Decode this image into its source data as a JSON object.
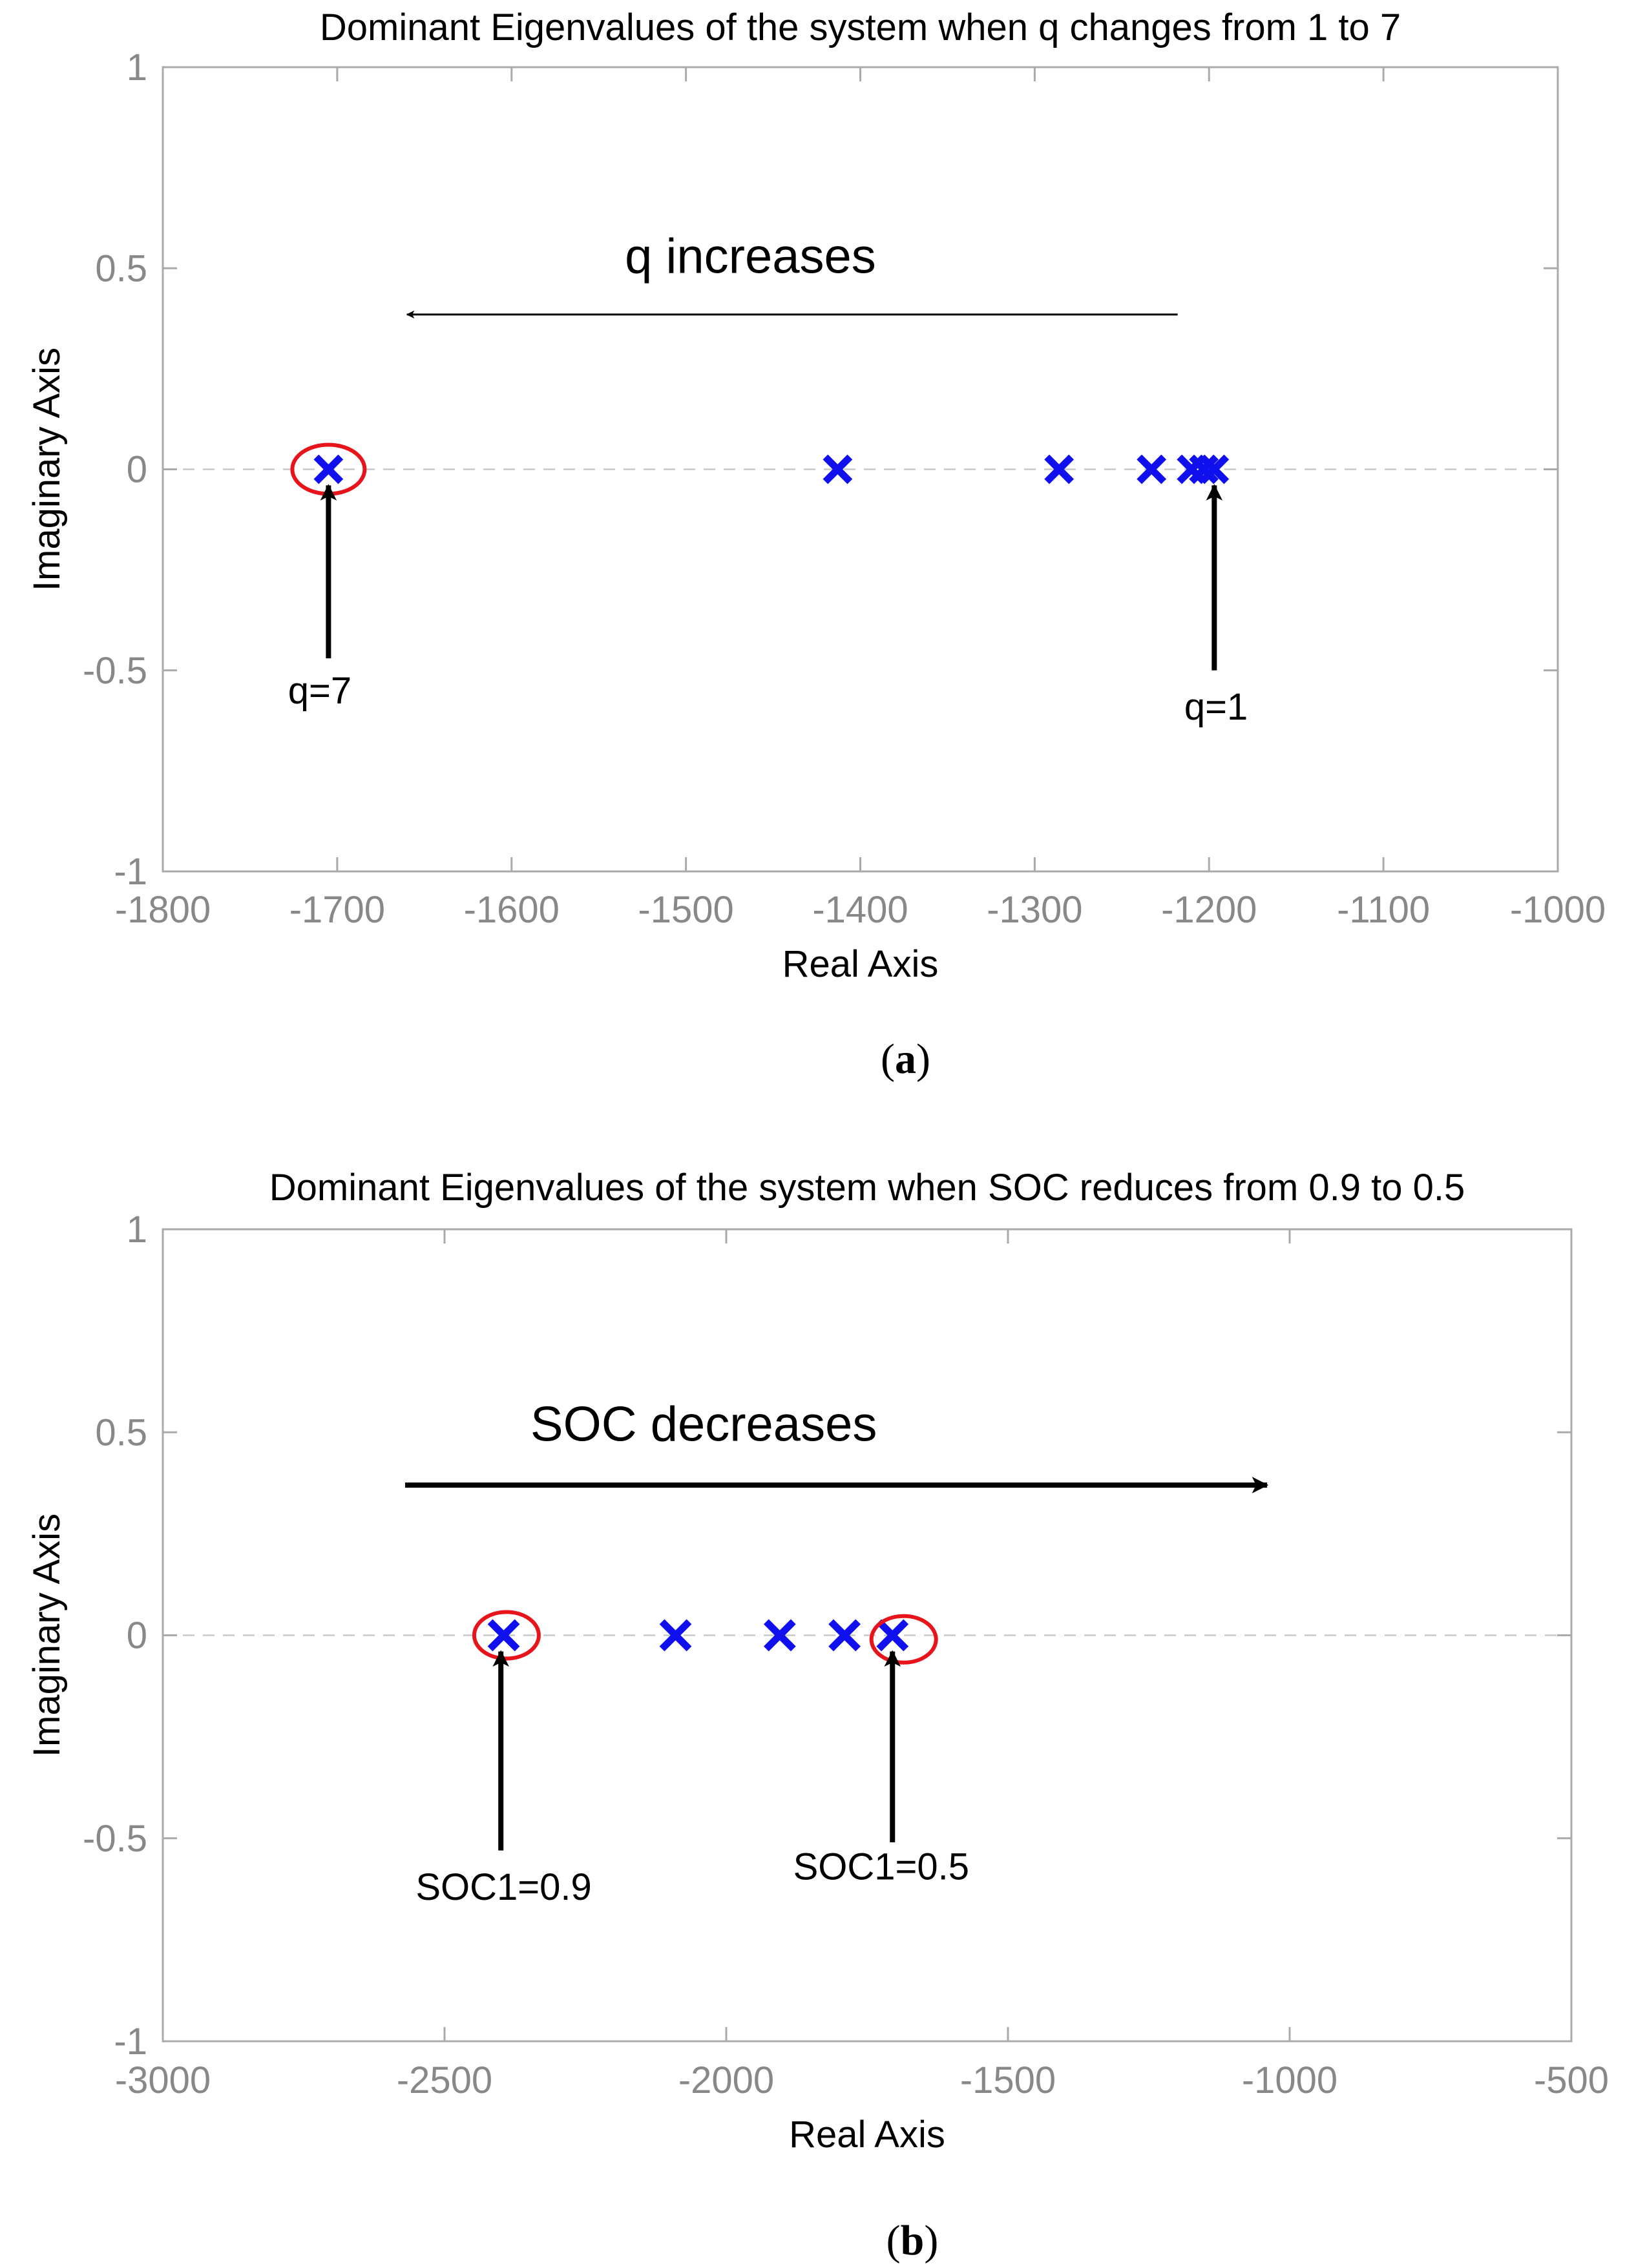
{
  "chart_data": [
    {
      "type": "scatter",
      "panel_label": "a",
      "title": "Dominant Eigenvalues of the system when q changes from 1 to 7",
      "xlabel": "Real Axis",
      "ylabel": "Imaginary Axis",
      "xlim": [
        -1800,
        -1000
      ],
      "ylim": [
        -1,
        1
      ],
      "xticks": [
        "-1800",
        "-1700",
        "-1600",
        "-1500",
        "-1400",
        "-1300",
        "-1200",
        "-1100",
        "-1000"
      ],
      "yticks": [
        "-1",
        "-0.5",
        "0",
        "0.5",
        "1"
      ],
      "grid": false,
      "zero_line": "dashed",
      "marker": "x",
      "marker_color": "#1010ee",
      "points": [
        {
          "x": -1705,
          "y": 0
        },
        {
          "x": -1413,
          "y": 0
        },
        {
          "x": -1286,
          "y": 0
        },
        {
          "x": -1233,
          "y": 0
        },
        {
          "x": -1210,
          "y": 0
        },
        {
          "x": -1203,
          "y": 0
        },
        {
          "x": -1197,
          "y": 0
        }
      ],
      "highlights": [
        {
          "x": -1705,
          "y": 0,
          "color": "#e8141c"
        }
      ],
      "annotations": [
        {
          "text": "q increases",
          "style": "large",
          "text_at": [
            -1463,
            0.53
          ],
          "arrow_from": [
            -1218,
            0.385
          ],
          "arrow_to": [
            -1660,
            0.385
          ],
          "arrow_weight": "thin"
        },
        {
          "text": "q=7",
          "style": "normal",
          "text_at": [
            -1710,
            -0.55
          ],
          "arrow_from": [
            -1705,
            -0.47
          ],
          "arrow_to": [
            -1705,
            -0.04
          ],
          "arrow_weight": "bold"
        },
        {
          "text": "q=1",
          "style": "normal",
          "text_at": [
            -1196,
            -0.59
          ],
          "arrow_from": [
            -1197,
            -0.5
          ],
          "arrow_to": [
            -1197,
            -0.04
          ],
          "arrow_weight": "bold"
        }
      ]
    },
    {
      "type": "scatter",
      "panel_label": "b",
      "title": "Dominant Eigenvalues of the system when SOC reduces from 0.9 to 0.5",
      "xlabel": "Real Axis",
      "ylabel": "Imaginary Axis",
      "xlim": [
        -3000,
        -500
      ],
      "ylim": [
        -1,
        1
      ],
      "xticks": [
        "-3000",
        "-2500",
        "-2000",
        "-1500",
        "-1000",
        "-500"
      ],
      "yticks": [
        "-1",
        "-0.5",
        "0",
        "0.5",
        "1"
      ],
      "grid": false,
      "zero_line": "dashed",
      "marker": "x",
      "marker_color": "#1010ee",
      "points": [
        {
          "x": -2395,
          "y": 0
        },
        {
          "x": -2090,
          "y": 0
        },
        {
          "x": -1905,
          "y": 0
        },
        {
          "x": -1790,
          "y": 0
        },
        {
          "x": -1705,
          "y": 0
        }
      ],
      "highlights": [
        {
          "x": -2390,
          "y": 0,
          "color": "#e8141c"
        },
        {
          "x": -1685,
          "y": -0.01,
          "color": "#e8141c"
        }
      ],
      "annotations": [
        {
          "text": "SOC decreases",
          "style": "large",
          "text_at": [
            -2040,
            0.52
          ],
          "arrow_from": [
            -2570,
            0.37
          ],
          "arrow_to": [
            -1040,
            0.37
          ],
          "arrow_weight": "bold"
        },
        {
          "text": "SOC1=0.9",
          "style": "normal",
          "text_at": [
            -2395,
            -0.62
          ],
          "arrow_from": [
            -2400,
            -0.53
          ],
          "arrow_to": [
            -2400,
            -0.04
          ],
          "arrow_weight": "bold"
        },
        {
          "text": "SOC1=0.5",
          "style": "normal",
          "text_at": [
            -1725,
            -0.57
          ],
          "arrow_from": [
            -1705,
            -0.51
          ],
          "arrow_to": [
            -1705,
            -0.04
          ],
          "arrow_weight": "bold"
        }
      ]
    }
  ]
}
